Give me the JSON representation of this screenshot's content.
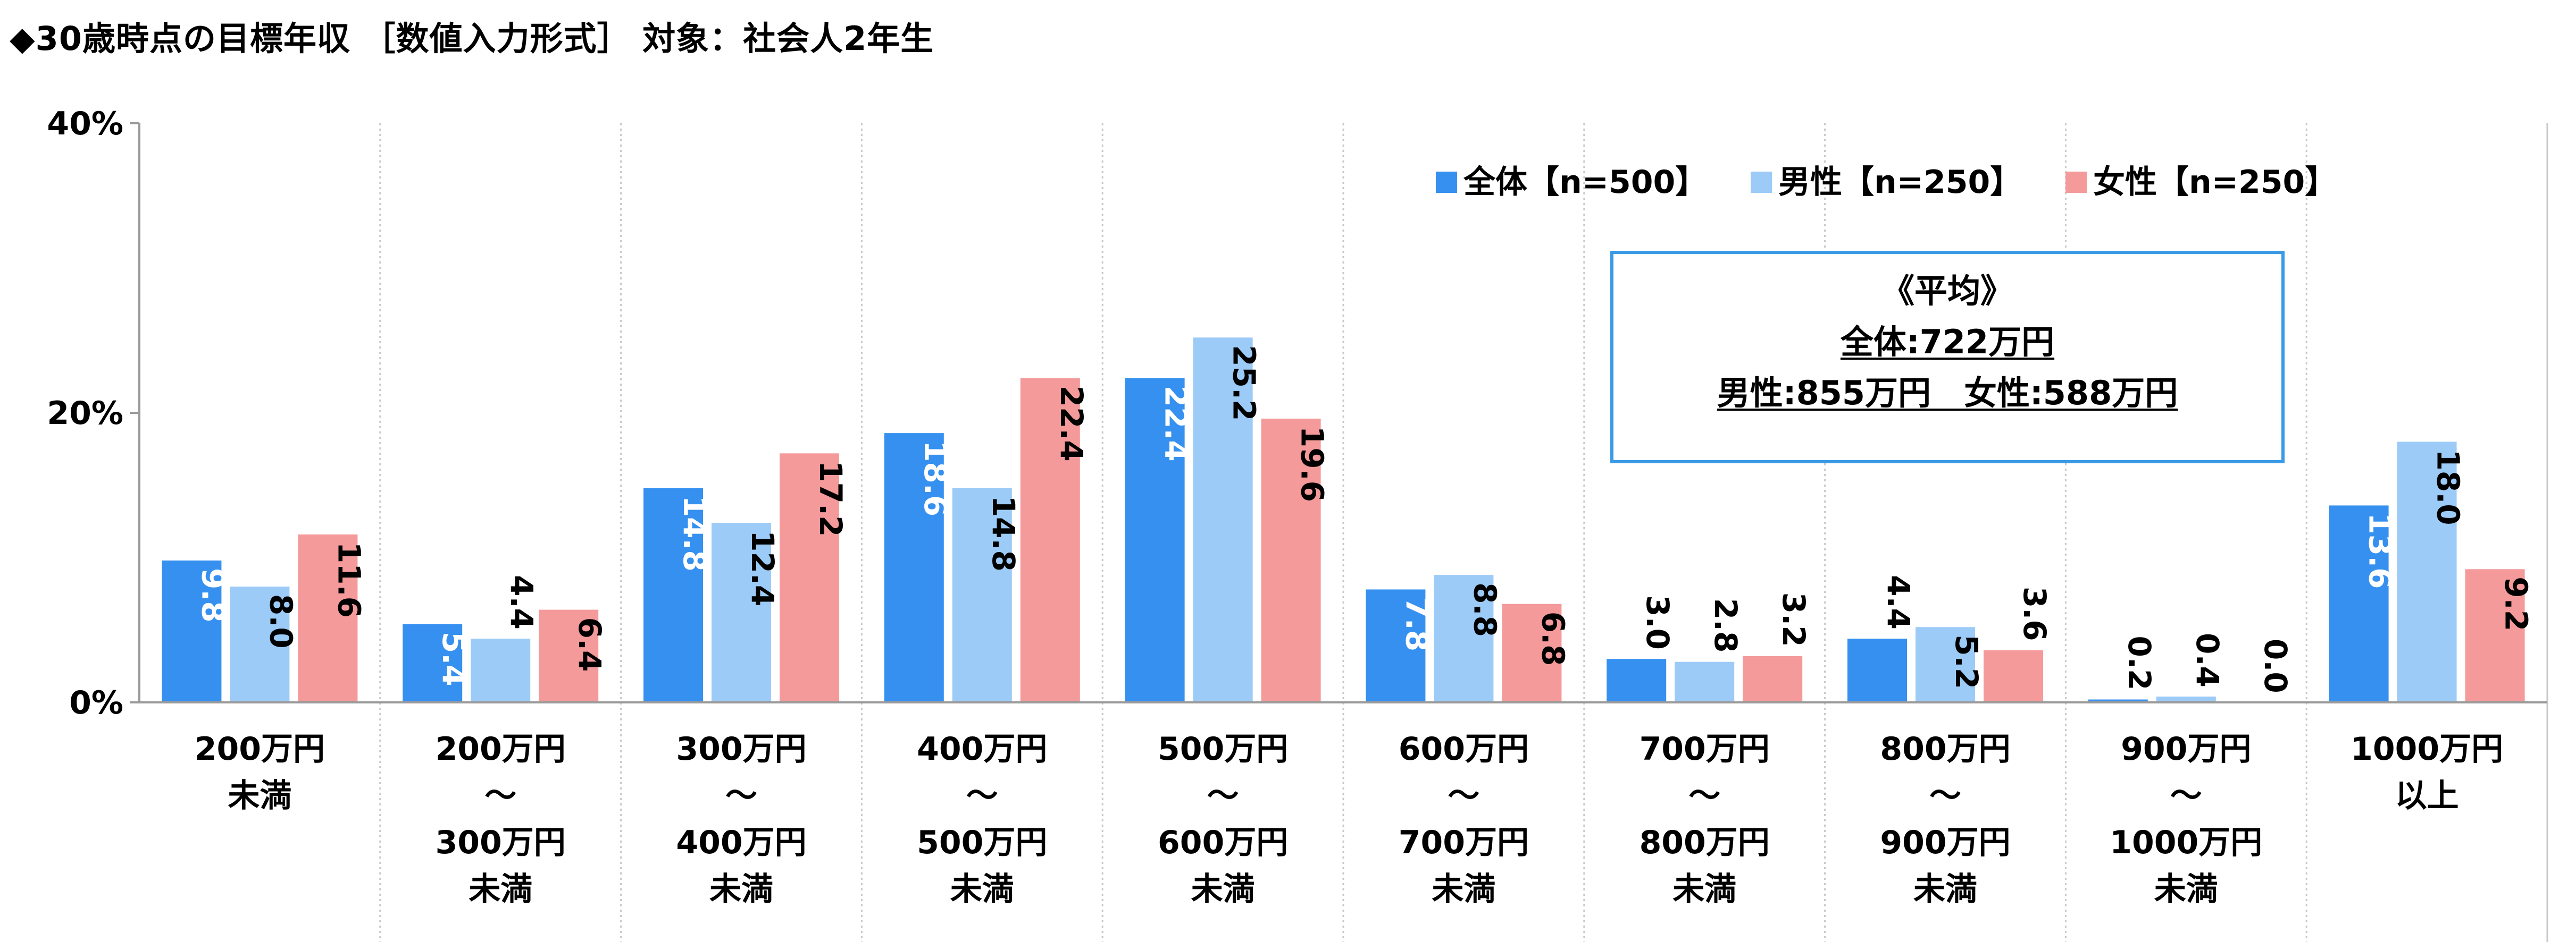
{
  "title": "◆30歳時点の目標年収 ［数値入力形式］ 対象：社会人2年生",
  "average_box": {
    "heading": "《平均》",
    "line1": "全体:722万円",
    "line2": "男性:855万円　女性:588万円"
  },
  "colors": {
    "all": "#3590f0",
    "male": "#9ccbf7",
    "female": "#f59a9a",
    "axis": "#9a9a9a",
    "grid": "#c8c8c8"
  },
  "chart_data": {
    "type": "bar",
    "ylim": [
      0,
      40
    ],
    "yticks": [
      "0%",
      "20%",
      "40%"
    ],
    "ytick_values": [
      0,
      20,
      40
    ],
    "legend_position": "top-right",
    "categories": [
      [
        "200万円",
        "未満"
      ],
      [
        "200万円",
        "～",
        "300万円",
        "未満"
      ],
      [
        "300万円",
        "～",
        "400万円",
        "未満"
      ],
      [
        "400万円",
        "～",
        "500万円",
        "未満"
      ],
      [
        "500万円",
        "～",
        "600万円",
        "未満"
      ],
      [
        "600万円",
        "～",
        "700万円",
        "未満"
      ],
      [
        "700万円",
        "～",
        "800万円",
        "未満"
      ],
      [
        "800万円",
        "～",
        "900万円",
        "未満"
      ],
      [
        "900万円",
        "～",
        "1000万円",
        "未満"
      ],
      [
        "1000万円",
        "以上"
      ]
    ],
    "series": [
      {
        "name": "全体【n=500】",
        "color": "#3590f0",
        "label_color": "#ffffff",
        "values": [
          9.8,
          5.4,
          14.8,
          18.6,
          22.4,
          7.8,
          3.0,
          4.4,
          0.2,
          13.6
        ]
      },
      {
        "name": "男性【n=250】",
        "color": "#9ccbf7",
        "label_color": "#000000",
        "values": [
          8.0,
          4.4,
          12.4,
          14.8,
          25.2,
          8.8,
          2.8,
          5.2,
          0.4,
          18.0
        ]
      },
      {
        "name": "女性【n=250】",
        "color": "#f59a9a",
        "label_color": "#000000",
        "values": [
          11.6,
          6.4,
          17.2,
          22.4,
          19.6,
          6.8,
          3.2,
          3.6,
          0.0,
          9.2
        ]
      }
    ]
  }
}
